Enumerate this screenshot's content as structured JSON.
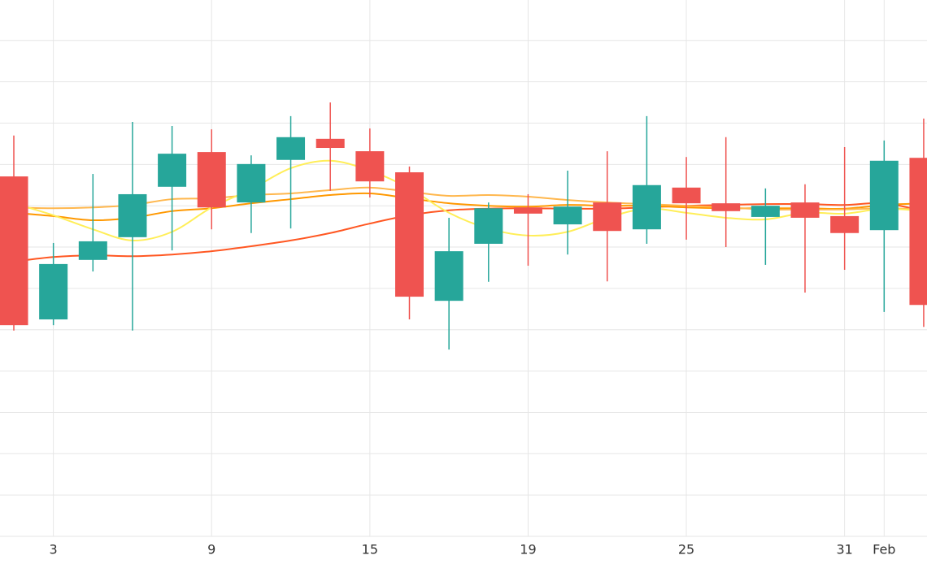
{
  "chart_data": {
    "type": "candlestick",
    "categories": [
      null,
      "3",
      null,
      null,
      null,
      "9",
      null,
      null,
      null,
      "15",
      null,
      null,
      null,
      "19",
      null,
      null,
      null,
      "25",
      null,
      null,
      null,
      "31",
      "Feb",
      null
    ],
    "open": [
      8.71,
      5.25,
      6.69,
      7.24,
      8.46,
      9.3,
      8.08,
      9.11,
      9.62,
      9.32,
      8.81,
      5.7,
      7.08,
      7.96,
      7.55,
      8.08,
      7.43,
      8.44,
      8.06,
      7.73,
      8.08,
      7.75,
      7.41,
      9.16
    ],
    "high": [
      9.7,
      7.1,
      8.77,
      10.03,
      9.93,
      9.85,
      9.22,
      10.17,
      10.5,
      9.87,
      8.95,
      7.71,
      8.08,
      8.28,
      8.85,
      9.32,
      10.17,
      9.18,
      9.66,
      8.42,
      8.52,
      9.42,
      9.58,
      10.11
    ],
    "low": [
      4.98,
      5.11,
      6.41,
      4.98,
      6.92,
      7.43,
      7.34,
      7.45,
      8.36,
      8.2,
      5.25,
      4.52,
      6.16,
      6.55,
      6.82,
      6.17,
      7.08,
      7.18,
      7.0,
      6.57,
      5.9,
      6.45,
      5.43,
      5.07
    ],
    "close": [
      5.11,
      6.59,
      7.14,
      8.28,
      9.26,
      7.96,
      9.01,
      9.66,
      9.4,
      8.59,
      5.8,
      6.9,
      7.94,
      7.81,
      7.98,
      7.39,
      8.5,
      8.06,
      7.87,
      8.0,
      7.71,
      7.34,
      9.09,
      5.6
    ],
    "up_color": "#26a69a",
    "down_color": "#ef5350",
    "series": [
      {
        "color": "#ff5722",
        "values": [
          6.65,
          6.76,
          6.8,
          6.78,
          6.82,
          6.9,
          7.02,
          7.16,
          7.34,
          7.57,
          7.77,
          7.89,
          7.93,
          7.94,
          7.93,
          7.93,
          7.96,
          8.0,
          8.02,
          8.04,
          8.04,
          8.02,
          8.06,
          7.87
        ]
      },
      {
        "color": "#ff9800",
        "values": [
          7.83,
          7.75,
          7.65,
          7.71,
          7.87,
          7.94,
          8.06,
          8.16,
          8.26,
          8.3,
          8.18,
          8.06,
          8.0,
          7.98,
          8.02,
          8.0,
          8.0,
          7.96,
          7.94,
          7.94,
          7.94,
          7.93,
          8.02,
          8.06
        ]
      },
      {
        "color": "#ffb74d",
        "values": [
          7.96,
          7.94,
          7.96,
          8.02,
          8.16,
          8.18,
          8.26,
          8.3,
          8.38,
          8.44,
          8.34,
          8.24,
          8.26,
          8.22,
          8.14,
          8.08,
          8.04,
          8.0,
          7.96,
          7.91,
          7.91,
          7.91,
          7.94,
          7.91
        ]
      },
      {
        "color": "#ffee58",
        "values": [
          8.06,
          7.77,
          7.43,
          7.16,
          7.37,
          7.96,
          8.4,
          8.91,
          9.09,
          8.85,
          8.42,
          7.83,
          7.45,
          7.28,
          7.37,
          7.71,
          7.93,
          7.83,
          7.71,
          7.67,
          7.83,
          7.81,
          7.93,
          7.87
        ]
      }
    ],
    "ylim": [
      0,
      13
    ],
    "yticks": [
      0,
      1,
      2,
      3,
      4,
      5,
      6,
      7,
      8,
      9,
      10,
      11,
      12
    ],
    "grid": true
  }
}
